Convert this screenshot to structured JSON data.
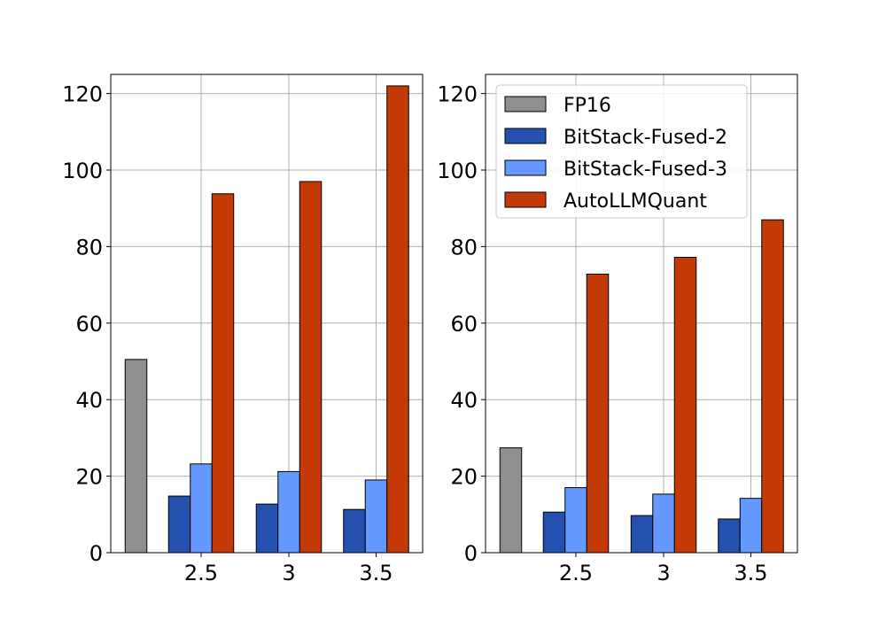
{
  "chart_data": [
    {
      "type": "bar",
      "title": "",
      "xlabel": "",
      "ylabel": "",
      "ylim": [
        0,
        125
      ],
      "yticks": [
        "0",
        "20",
        "40",
        "60",
        "80",
        "100",
        "120"
      ],
      "categories": [
        "",
        "2.5",
        "3",
        "3.5"
      ],
      "grid": true,
      "series": [
        {
          "name": "FP16",
          "color": "#8f8f8f",
          "values": [
            50.5,
            null,
            null,
            null
          ]
        },
        {
          "name": "BitStack-Fused-2",
          "color": "#2450b0",
          "values": [
            null,
            14.8,
            12.7,
            11.3
          ]
        },
        {
          "name": "BitStack-Fused-3",
          "color": "#6699ff",
          "values": [
            null,
            23.2,
            21.2,
            19.0
          ]
        },
        {
          "name": "AutoLLMQuant",
          "color": "#c43a06",
          "values": [
            null,
            93.8,
            97.0,
            122.0
          ]
        }
      ],
      "legend": null
    },
    {
      "type": "bar",
      "title": "",
      "xlabel": "",
      "ylabel": "",
      "ylim": [
        0,
        125
      ],
      "yticks": [
        "0",
        "20",
        "40",
        "60",
        "80",
        "100",
        "120"
      ],
      "categories": [
        "",
        "2.5",
        "3",
        "3.5"
      ],
      "grid": true,
      "series": [
        {
          "name": "FP16",
          "color": "#8f8f8f",
          "values": [
            27.4,
            null,
            null,
            null
          ]
        },
        {
          "name": "BitStack-Fused-2",
          "color": "#2450b0",
          "values": [
            null,
            10.6,
            9.7,
            8.8
          ]
        },
        {
          "name": "BitStack-Fused-3",
          "color": "#6699ff",
          "values": [
            null,
            17.0,
            15.3,
            14.2
          ]
        },
        {
          "name": "AutoLLMQuant",
          "color": "#c43a06",
          "values": [
            null,
            72.8,
            77.2,
            87.0
          ]
        }
      ],
      "legend": "upper-left"
    }
  ]
}
